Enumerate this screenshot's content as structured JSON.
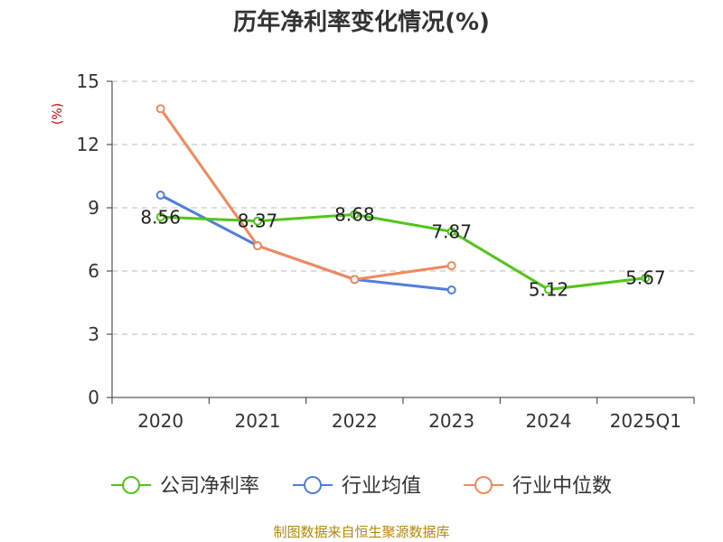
{
  "chart_data": {
    "type": "line",
    "title": "历年净利率变化情况(%)",
    "ylabel": "(%)",
    "xlabel": "",
    "categories": [
      "2020",
      "2021",
      "2022",
      "2023",
      "2024",
      "2025Q1"
    ],
    "ylim": [
      0,
      15
    ],
    "yticks": [
      0,
      3,
      6,
      9,
      12,
      15
    ],
    "grid": true,
    "legend_position": "bottom",
    "series": [
      {
        "name": "公司净利率",
        "color": "#52c41a",
        "values": [
          8.56,
          8.37,
          8.68,
          7.87,
          5.12,
          5.67
        ],
        "labels": [
          "8.56",
          "8.37",
          "8.68",
          "7.87",
          "5.12",
          "5.67"
        ]
      },
      {
        "name": "行业均值",
        "color": "#4f7fdb",
        "values": [
          9.6,
          7.2,
          5.6,
          5.1,
          null,
          null
        ]
      },
      {
        "name": "行业中位数",
        "color": "#f2895c",
        "values": [
          13.7,
          7.2,
          5.6,
          6.25,
          null,
          null
        ]
      }
    ]
  },
  "footer": {
    "source": "制图数据来自恒生聚源数据库"
  }
}
